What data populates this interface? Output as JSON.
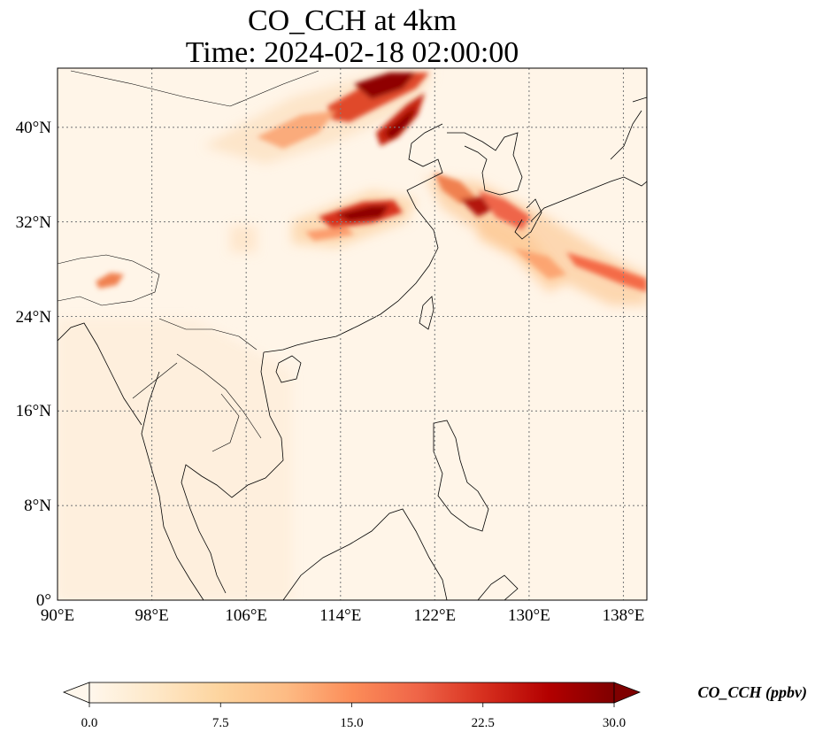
{
  "title_line1": "CO_CCH at 4km",
  "title_line2": "Time: 2024-02-18 02:00:00",
  "lon_ticks": [
    "90°E",
    "98°E",
    "106°E",
    "114°E",
    "122°E",
    "130°E",
    "138°E"
  ],
  "lat_ticks": [
    "0°",
    "8°N",
    "16°N",
    "24°N",
    "32°N",
    "40°N"
  ],
  "colorbar": {
    "label": "CO_CCH (ppbv)",
    "ticks": [
      "0.0",
      "7.5",
      "15.0",
      "22.5",
      "30.0"
    ],
    "min": 0,
    "max": 30,
    "colormap": "OrRd",
    "extend": "both",
    "colors": [
      "#fff7ec",
      "#fee8c8",
      "#fdd49e",
      "#fdbb84",
      "#fc8d59",
      "#ef6548",
      "#d7301f",
      "#b30000",
      "#7f0000"
    ]
  },
  "map": {
    "projection": "PlateCarree",
    "lon_range": [
      90,
      140
    ],
    "lat_range": [
      0,
      45
    ],
    "gridlines": "dotted",
    "background_color": "#fff5e8"
  }
}
